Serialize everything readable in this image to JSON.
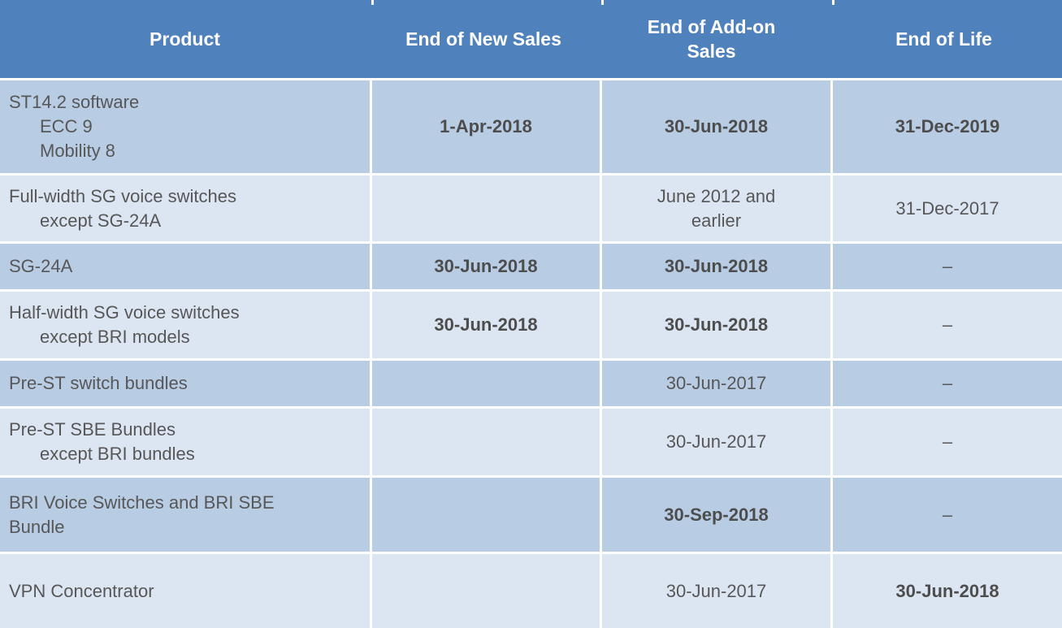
{
  "colors": {
    "header_bg": "#4f81bd",
    "band_medium": "#b8cce4",
    "band_light": "#dce6f2",
    "header_text": "#ffffff",
    "body_text": "#575757"
  },
  "header": {
    "columns": [
      "Product",
      "End of New Sales",
      "End of Add-on Sales",
      "End of Life"
    ]
  },
  "rows": [
    {
      "band": "medium",
      "product_lines": [
        {
          "text": "ST14.2 software",
          "indent": false
        },
        {
          "text": "ECC 9",
          "indent": true
        },
        {
          "text": "Mobility 8",
          "indent": true
        }
      ],
      "cells": [
        {
          "text": "1-Apr-2018",
          "bold": true
        },
        {
          "text": "30-Jun-2018",
          "bold": true
        },
        {
          "text": "31-Dec-2019",
          "bold": true
        }
      ]
    },
    {
      "band": "light",
      "product_lines": [
        {
          "text": "Full-width SG voice switches",
          "indent": false
        },
        {
          "text": "except SG-24A",
          "indent": true
        }
      ],
      "cells": [
        {
          "text": "",
          "bold": false
        },
        {
          "text": "June 2012 and earlier",
          "bold": false
        },
        {
          "text": "31-Dec-2017",
          "bold": false
        }
      ]
    },
    {
      "band": "medium",
      "product_lines": [
        {
          "text": "SG-24A",
          "indent": false
        }
      ],
      "cells": [
        {
          "text": "30-Jun-2018",
          "bold": true
        },
        {
          "text": "30-Jun-2018",
          "bold": true
        },
        {
          "text": "–",
          "bold": false
        }
      ]
    },
    {
      "band": "light",
      "product_lines": [
        {
          "text": "Half-width SG voice switches",
          "indent": false
        },
        {
          "text": "except BRI models",
          "indent": true
        }
      ],
      "cells": [
        {
          "text": "30-Jun-2018",
          "bold": true
        },
        {
          "text": "30-Jun-2018",
          "bold": true
        },
        {
          "text": "–",
          "bold": false
        }
      ]
    },
    {
      "band": "medium",
      "product_lines": [
        {
          "text": "Pre-ST switch bundles",
          "indent": false
        }
      ],
      "cells": [
        {
          "text": "",
          "bold": false
        },
        {
          "text": "30-Jun-2017",
          "bold": false
        },
        {
          "text": "–",
          "bold": false
        }
      ]
    },
    {
      "band": "light",
      "product_lines": [
        {
          "text": "Pre-ST SBE Bundles",
          "indent": false
        },
        {
          "text": "except BRI bundles",
          "indent": true
        }
      ],
      "cells": [
        {
          "text": "",
          "bold": false
        },
        {
          "text": "30-Jun-2017",
          "bold": false
        },
        {
          "text": "–",
          "bold": false
        }
      ]
    },
    {
      "band": "medium",
      "product_lines": [
        {
          "text": "BRI Voice Switches and BRI SBE",
          "indent": false
        },
        {
          "text": "Bundle",
          "indent": false
        }
      ],
      "cells": [
        {
          "text": "",
          "bold": false
        },
        {
          "text": "30-Sep-2018",
          "bold": true
        },
        {
          "text": "–",
          "bold": false
        }
      ]
    },
    {
      "band": "light",
      "product_lines": [
        {
          "text": "VPN Concentrator",
          "indent": false
        }
      ],
      "cells": [
        {
          "text": "",
          "bold": false
        },
        {
          "text": "30-Jun-2017",
          "bold": false
        },
        {
          "text": "30-Jun-2018",
          "bold": true
        }
      ]
    }
  ]
}
